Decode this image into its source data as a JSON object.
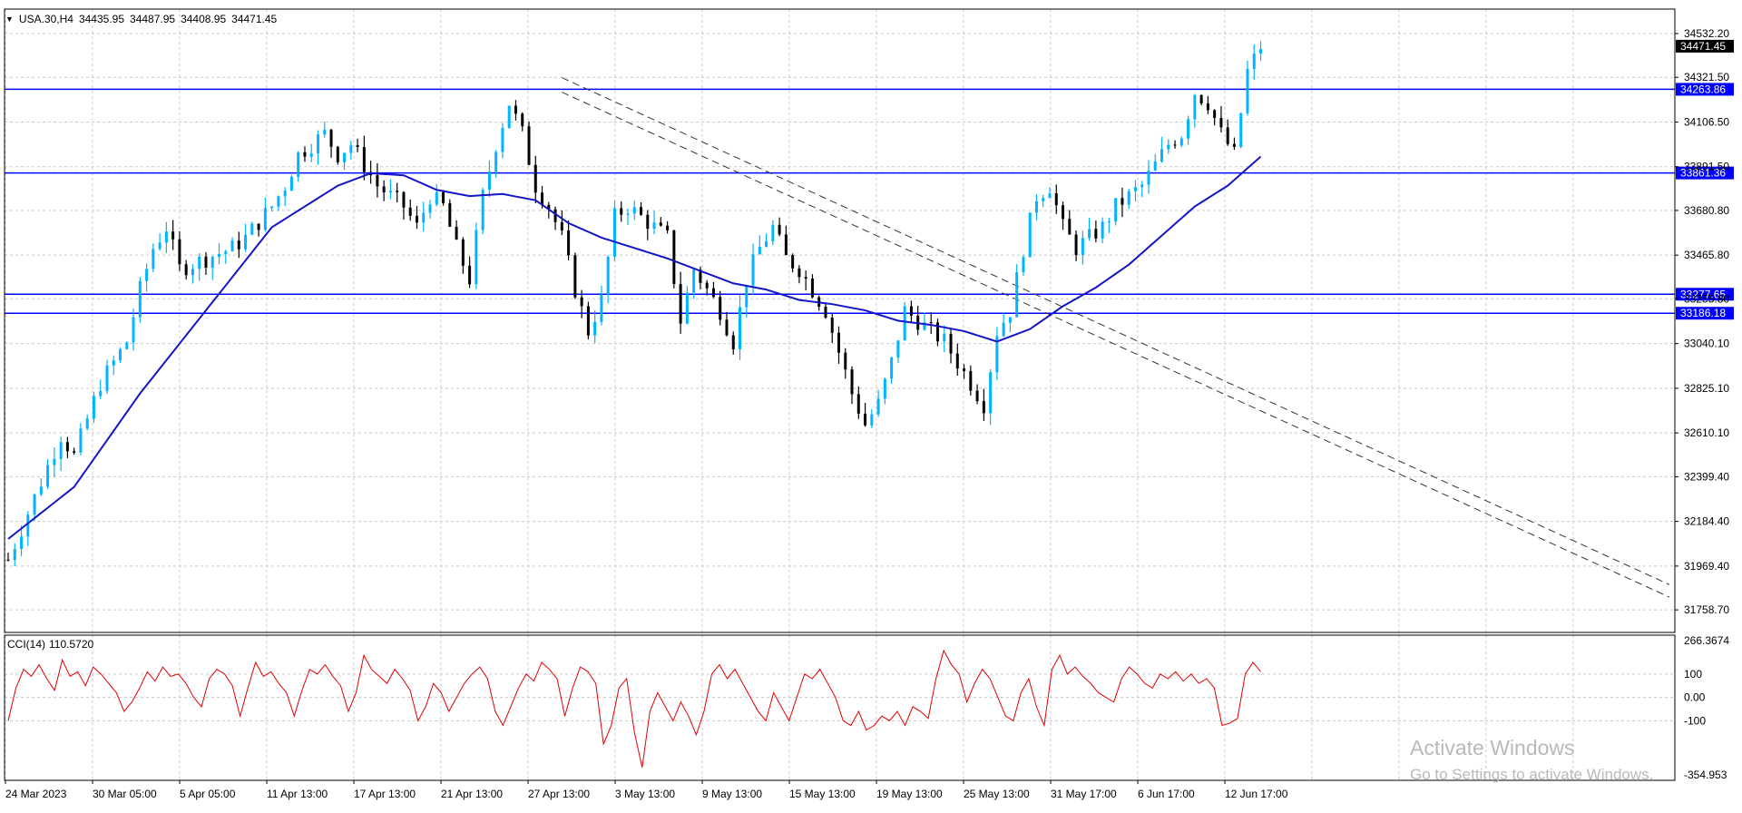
{
  "header": {
    "symbol": "USA.30,H4",
    "open": "34435.95",
    "high": "34487.95",
    "low": "34408.95",
    "close": "34471.45"
  },
  "cci_header": {
    "label": "CCI(14)",
    "value": "110.5720"
  },
  "watermark": {
    "line1": "Activate Windows",
    "line2": "Go to Settings to activate Windows."
  },
  "colors": {
    "bull": "#00b4ff",
    "bear": "#000000",
    "ma": "#1414c8",
    "hline": "#0000ff",
    "cci": "#e00000",
    "grid": "#c8c8c8",
    "trend": "#333333"
  },
  "chart_data": [
    {
      "type": "candlestick",
      "symbol": "USA.30",
      "timeframe": "H4",
      "ylim": [
        31650,
        34650
      ],
      "grid": true,
      "yticks": [
        "34532.20",
        "34321.50",
        "34106.50",
        "33891.50",
        "33680.80",
        "33465.80",
        "33255.80",
        "33040.10",
        "32825.10",
        "32610.10",
        "32399.40",
        "32184.40",
        "31969.40",
        "31758.70"
      ],
      "xticks": [
        "24 Mar 2023",
        "30 Mar 05:00",
        "5 Apr 05:00",
        "11 Apr 13:00",
        "17 Apr 13:00",
        "21 Apr 13:00",
        "27 Apr 13:00",
        "3 May 13:00",
        "9 May 13:00",
        "15 May 13:00",
        "19 May 13:00",
        "25 May 13:00",
        "31 May 17:00",
        "6 Jun 17:00",
        "12 Jun 17:00"
      ],
      "current_price": "34471.45",
      "horizontal_levels": [
        "34263.86",
        "33861.36",
        "33277.65",
        "33186.18"
      ],
      "close_path": [
        [
          0,
          32000
        ],
        [
          4,
          32300
        ],
        [
          8,
          32600
        ],
        [
          10,
          32500
        ],
        [
          14,
          32850
        ],
        [
          18,
          33050
        ],
        [
          20,
          33300
        ],
        [
          22,
          33500
        ],
        [
          24,
          33600
        ],
        [
          26,
          33400
        ],
        [
          30,
          33450
        ],
        [
          34,
          33500
        ],
        [
          36,
          33550
        ],
        [
          40,
          33700
        ],
        [
          42,
          33800
        ],
        [
          44,
          33950
        ],
        [
          46,
          34000
        ],
        [
          48,
          34050
        ],
        [
          50,
          33950
        ],
        [
          52,
          34000
        ],
        [
          54,
          33900
        ],
        [
          56,
          33800
        ],
        [
          58,
          33750
        ],
        [
          60,
          33700
        ],
        [
          62,
          33600
        ],
        [
          64,
          33750
        ],
        [
          66,
          33700
        ],
        [
          68,
          33500
        ],
        [
          70,
          33350
        ],
        [
          72,
          33750
        ],
        [
          74,
          34000
        ],
        [
          76,
          34200
        ],
        [
          78,
          34050
        ],
        [
          80,
          33800
        ],
        [
          82,
          33700
        ],
        [
          84,
          33550
        ],
        [
          86,
          33300
        ],
        [
          88,
          33100
        ],
        [
          90,
          33250
        ],
        [
          92,
          33650
        ],
        [
          94,
          33700
        ],
        [
          96,
          33650
        ],
        [
          98,
          33600
        ],
        [
          100,
          33550
        ],
        [
          102,
          33150
        ],
        [
          104,
          33400
        ],
        [
          106,
          33300
        ],
        [
          108,
          33200
        ],
        [
          110,
          33050
        ],
        [
          112,
          33350
        ],
        [
          114,
          33500
        ],
        [
          116,
          33600
        ],
        [
          118,
          33450
        ],
        [
          120,
          33400
        ],
        [
          122,
          33300
        ],
        [
          124,
          33200
        ],
        [
          126,
          33000
        ],
        [
          128,
          32800
        ],
        [
          130,
          32650
        ],
        [
          132,
          32750
        ],
        [
          134,
          32950
        ],
        [
          136,
          33200
        ],
        [
          138,
          33150
        ],
        [
          140,
          33100
        ],
        [
          142,
          33050
        ],
        [
          144,
          32950
        ],
        [
          146,
          32850
        ],
        [
          148,
          32750
        ],
        [
          150,
          33100
        ],
        [
          152,
          33200
        ],
        [
          154,
          33500
        ],
        [
          156,
          33750
        ],
        [
          158,
          33800
        ],
        [
          160,
          33600
        ],
        [
          162,
          33500
        ],
        [
          164,
          33550
        ],
        [
          166,
          33600
        ],
        [
          168,
          33700
        ],
        [
          170,
          33750
        ],
        [
          172,
          33800
        ],
        [
          174,
          33900
        ],
        [
          176,
          34000
        ],
        [
          178,
          34050
        ],
        [
          180,
          34250
        ],
        [
          182,
          34200
        ],
        [
          184,
          34050
        ],
        [
          186,
          33950
        ],
        [
          188,
          34350
        ],
        [
          190,
          34470
        ]
      ],
      "moving_average_path": [
        [
          0,
          32100
        ],
        [
          10,
          32350
        ],
        [
          20,
          32800
        ],
        [
          30,
          33200
        ],
        [
          40,
          33600
        ],
        [
          50,
          33800
        ],
        [
          55,
          33860
        ],
        [
          60,
          33850
        ],
        [
          65,
          33780
        ],
        [
          70,
          33750
        ],
        [
          75,
          33760
        ],
        [
          80,
          33730
        ],
        [
          85,
          33620
        ],
        [
          90,
          33550
        ],
        [
          95,
          33500
        ],
        [
          100,
          33450
        ],
        [
          105,
          33390
        ],
        [
          110,
          33330
        ],
        [
          115,
          33300
        ],
        [
          120,
          33250
        ],
        [
          125,
          33230
        ],
        [
          130,
          33200
        ],
        [
          135,
          33150
        ],
        [
          140,
          33130
        ],
        [
          145,
          33100
        ],
        [
          150,
          33050
        ],
        [
          155,
          33110
        ],
        [
          160,
          33220
        ],
        [
          165,
          33310
        ],
        [
          170,
          33420
        ],
        [
          175,
          33560
        ],
        [
          180,
          33700
        ],
        [
          185,
          33800
        ],
        [
          190,
          33940
        ]
      ],
      "trendlines": [
        {
          "from": [
            84,
            34320
          ],
          "to": [
            252,
            31880
          ]
        },
        {
          "from": [
            84,
            34250
          ],
          "to": [
            252,
            31820
          ]
        }
      ]
    },
    {
      "type": "line",
      "name": "CCI(14)",
      "ylim": [
        -354.953,
        266.3674
      ],
      "yticks": [
        "266.3674",
        "100",
        "0.00",
        "-100",
        "-354.953"
      ],
      "values": [
        -100,
        40,
        120,
        90,
        140,
        80,
        30,
        160,
        90,
        110,
        50,
        130,
        100,
        60,
        20,
        -60,
        -20,
        40,
        110,
        70,
        130,
        90,
        100,
        60,
        0,
        -40,
        80,
        120,
        100,
        50,
        -80,
        40,
        150,
        90,
        110,
        60,
        20,
        -80,
        30,
        120,
        100,
        140,
        90,
        50,
        -60,
        20,
        180,
        120,
        90,
        60,
        120,
        80,
        30,
        -100,
        -40,
        60,
        20,
        -60,
        0,
        60,
        100,
        130,
        80,
        -60,
        -120,
        -40,
        40,
        100,
        70,
        150,
        120,
        80,
        -80,
        40,
        130,
        110,
        60,
        -200,
        -120,
        40,
        80,
        -150,
        -300,
        -60,
        20,
        -40,
        -100,
        -20,
        -80,
        -160,
        -60,
        100,
        140,
        80,
        120,
        60,
        0,
        -60,
        -100,
        20,
        -40,
        -100,
        0,
        100,
        80,
        120,
        60,
        0,
        -100,
        -120,
        -60,
        -140,
        -120,
        -80,
        -100,
        -60,
        -120,
        -40,
        -60,
        -90,
        80,
        200,
        140,
        100,
        -20,
        60,
        120,
        80,
        0,
        -80,
        -100,
        20,
        80,
        -40,
        -120,
        120,
        180,
        100,
        130,
        90,
        60,
        20,
        0,
        -20,
        80,
        130,
        100,
        60,
        40,
        100,
        80,
        110,
        70,
        100,
        60,
        80,
        40,
        -120,
        -110,
        -90,
        100,
        150,
        110
      ]
    }
  ]
}
